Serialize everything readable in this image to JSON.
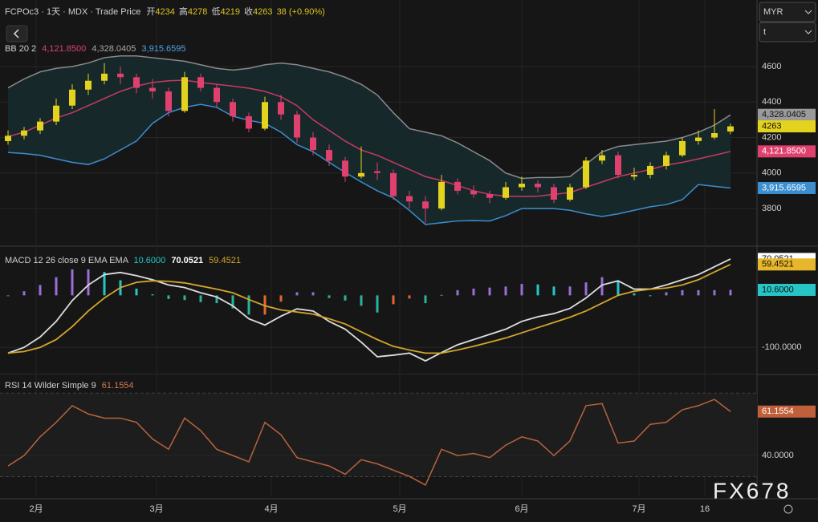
{
  "header": {
    "symbol": "FCPOc3 · 1天 · MDX · Trade Price",
    "open_label": "开",
    "high_label": "高",
    "low_label": "低",
    "close_label": "收",
    "change": "38 (+0.90%)"
  },
  "controls": {
    "currency": "MYR",
    "field": "t"
  },
  "watermark": "FX678",
  "xaxis": {
    "ticks": [
      {
        "value": 1.75,
        "label": "2月"
      },
      {
        "value": 9.25,
        "label": "3月"
      },
      {
        "value": 16.4,
        "label": "4月"
      },
      {
        "value": 24.4,
        "label": "5月"
      },
      {
        "value": 32,
        "label": "6月"
      },
      {
        "value": 39.3,
        "label": "7月"
      },
      {
        "value": 43.4,
        "label": "16"
      }
    ]
  },
  "price_panel": {
    "legend": "BB 20 2",
    "ylim": [
      3597,
      4975
    ],
    "yticks": [
      3800,
      4000,
      4200,
      4400,
      4600
    ],
    "candles": {
      "up_color": "#e3d21e",
      "down_color": "#e0406e",
      "open": [
        4180,
        4210,
        4240,
        4290,
        4380,
        4470,
        4520,
        4560,
        4540,
        4480,
        4460,
        4350,
        4540,
        4480,
        4400,
        4320,
        4250,
        4400,
        4330,
        4200,
        4130,
        4070,
        3980,
        4010,
        4000,
        3870,
        3840,
        3800,
        3950,
        3900,
        3880,
        3860,
        3920,
        3940,
        3920,
        3850,
        3920,
        4070,
        4100,
        3980,
        3990,
        4040,
        4100,
        4180,
        4200,
        4234
      ],
      "high": [
        4240,
        4260,
        4310,
        4420,
        4500,
        4560,
        4620,
        4600,
        4560,
        4530,
        4480,
        4570,
        4560,
        4500,
        4420,
        4340,
        4430,
        4440,
        4350,
        4230,
        4160,
        4090,
        4150,
        4060,
        4020,
        3900,
        3870,
        3990,
        3970,
        3930,
        3900,
        3950,
        3980,
        3960,
        3940,
        3940,
        4090,
        4130,
        4120,
        4030,
        4060,
        4120,
        4200,
        4240,
        4360,
        4278
      ],
      "low": [
        4160,
        4190,
        4220,
        4270,
        4360,
        4440,
        4500,
        4500,
        4450,
        4420,
        4320,
        4340,
        4460,
        4370,
        4290,
        4230,
        4240,
        4300,
        4170,
        4100,
        4040,
        3950,
        3970,
        3960,
        3850,
        3800,
        3720,
        3790,
        3880,
        3860,
        3830,
        3850,
        3900,
        3890,
        3830,
        3840,
        3910,
        4050,
        3970,
        3960,
        3970,
        4020,
        4090,
        4160,
        4190,
        4219
      ],
      "close": [
        4210,
        4240,
        4290,
        4380,
        4470,
        4520,
        4560,
        4540,
        4480,
        4460,
        4350,
        4540,
        4480,
        4400,
        4320,
        4250,
        4400,
        4330,
        4200,
        4130,
        4070,
        3980,
        4000,
        4000,
        3870,
        3840,
        3800,
        3950,
        3900,
        3880,
        3860,
        3920,
        3940,
        3920,
        3850,
        3920,
        4070,
        4100,
        3990,
        3990,
        4040,
        4100,
        4180,
        4200,
        4225,
        4263
      ]
    },
    "upper": {
      "label": "4,328.0405",
      "color": "#8a8a8a",
      "text_color": "#a8a8a8",
      "values": [
        4480,
        4530,
        4570,
        4590,
        4600,
        4620,
        4650,
        4660,
        4660,
        4650,
        4640,
        4630,
        4610,
        4590,
        4580,
        4590,
        4610,
        4620,
        4610,
        4590,
        4570,
        4540,
        4500,
        4440,
        4340,
        4250,
        4230,
        4210,
        4170,
        4120,
        4070,
        4000,
        3970,
        3975,
        3975,
        3980,
        4050,
        4120,
        4150,
        4160,
        4170,
        4180,
        4200,
        4230,
        4270,
        4328.0405
      ]
    },
    "middle": {
      "label": "4,121.8500",
      "color": "#c73a62",
      "text_color": "#e0406e",
      "values": [
        4206,
        4230,
        4270,
        4310,
        4340,
        4380,
        4420,
        4460,
        4490,
        4510,
        4520,
        4523,
        4510,
        4500,
        4490,
        4478,
        4460,
        4430,
        4380,
        4300,
        4240,
        4180,
        4130,
        4100,
        4060,
        4020,
        3980,
        3958,
        3930,
        3900,
        3880,
        3870,
        3868,
        3870,
        3880,
        3890,
        3920,
        3950,
        3980,
        4000,
        4020,
        4045,
        4060,
        4080,
        4100,
        4121.85
      ]
    },
    "lower": {
      "label": "3,915.6595",
      "color": "#3b8ed0",
      "text_color": "#4aa3e8",
      "values": [
        4116,
        4110,
        4100,
        4080,
        4060,
        4048,
        4080,
        4130,
        4180,
        4280,
        4340,
        4370,
        4387,
        4370,
        4320,
        4297,
        4280,
        4230,
        4160,
        4120,
        4060,
        4003,
        3950,
        3900,
        3860,
        3790,
        3710,
        3720,
        3730,
        3732,
        3730,
        3760,
        3800,
        3800,
        3800,
        3790,
        3770,
        3755,
        3770,
        3790,
        3810,
        3822,
        3850,
        3935,
        3925,
        3915.6595
      ]
    },
    "fill_color": "#17282a"
  },
  "macd_panel": {
    "legend": "MACD 12 26 close 9 EMA EMA",
    "ylim": [
      -149,
      90
    ],
    "yticks": [
      {
        "value": -100,
        "label": "-100.0000"
      }
    ],
    "histogram": {
      "label": "10.6000",
      "color": "#26c6c6",
      "colors": {
        "pos_rise": "#9b6fd6",
        "pos_fall": "#26c6c6",
        "neg_fall": "#2bb39a",
        "neg_rise": "#e5652e"
      },
      "values": [
        0,
        8,
        20,
        35,
        50,
        50,
        45,
        29,
        13,
        2,
        -7,
        -9,
        -13,
        -15,
        -25,
        -37,
        -37,
        -12,
        6,
        6,
        -5,
        -10,
        -20,
        -33,
        -17,
        -6,
        -15,
        1,
        10,
        13,
        15,
        17,
        22,
        21,
        17,
        17,
        25,
        35,
        28,
        4,
        0,
        6,
        10,
        10,
        10,
        10.6
      ]
    },
    "macd": {
      "label": "70.0521",
      "color": "#dddddd",
      "values": [
        -111,
        -100,
        -80,
        -50,
        -10,
        20,
        40,
        44,
        38,
        30,
        20,
        15,
        5,
        -3,
        -20,
        -45,
        -57,
        -40,
        -26,
        -30,
        -50,
        -65,
        -90,
        -118,
        -115,
        -111,
        -126,
        -110,
        -95,
        -85,
        -75,
        -65,
        -50,
        -41,
        -35,
        -25,
        -5,
        20,
        28,
        12,
        12,
        20,
        30,
        40,
        55,
        70.0521
      ]
    },
    "signal": {
      "label": "59.4521",
      "color": "#d4a52a",
      "values": [
        -111,
        -108,
        -100,
        -85,
        -60,
        -30,
        -5,
        15,
        25,
        28,
        27,
        24,
        18,
        12,
        5,
        -8,
        -20,
        -28,
        -32,
        -36,
        -45,
        -55,
        -70,
        -85,
        -98,
        -105,
        -111,
        -111,
        -105,
        -98,
        -90,
        -82,
        -72,
        -62,
        -52,
        -42,
        -30,
        -15,
        0,
        8,
        12,
        14,
        20,
        30,
        45,
        59.4521
      ]
    }
  },
  "rsi_panel": {
    "legend": "RSI 14 Wilder Simple 9",
    "ylim": [
      20,
      79
    ],
    "yticks": [
      {
        "value": 40,
        "label": "40.0000"
      }
    ],
    "levels": [
      70,
      30
    ],
    "label": "61.1554",
    "color": "#b8633e",
    "values": [
      35,
      40,
      49,
      56,
      64,
      60,
      58,
      58,
      56,
      48,
      43,
      58,
      52,
      43,
      40,
      37,
      56,
      50,
      39,
      37,
      35,
      31,
      38,
      36,
      33,
      30,
      25.8,
      43,
      40,
      41,
      39,
      45,
      49,
      47,
      40,
      47,
      64,
      65,
      46,
      47,
      55,
      56,
      62,
      64,
      67,
      61.1554
    ]
  }
}
